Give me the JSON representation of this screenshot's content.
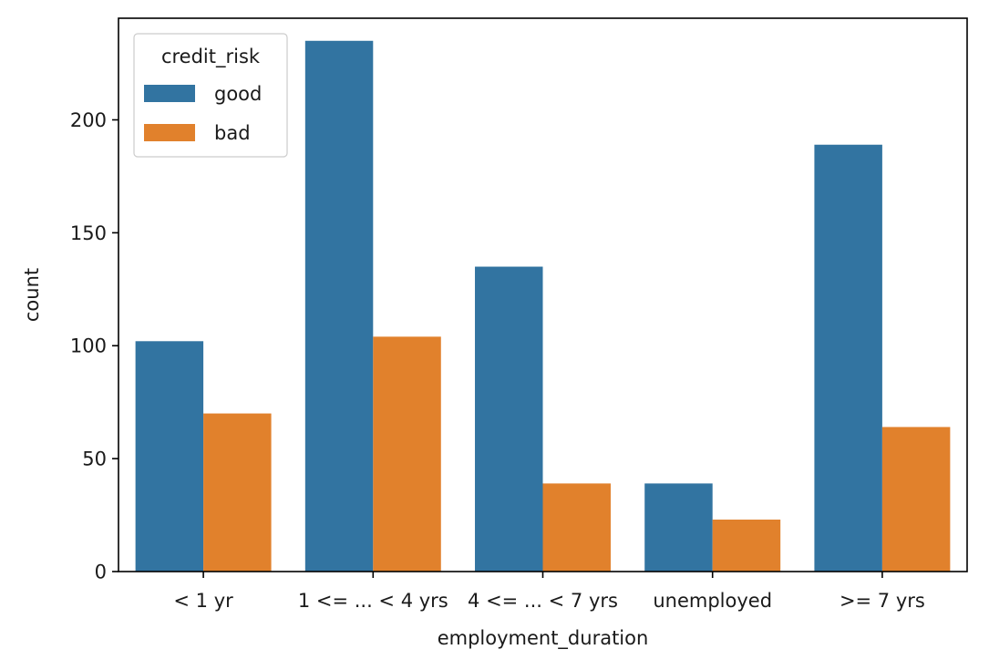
{
  "chart_data": {
    "type": "bar",
    "xlabel": "employment_duration",
    "ylabel": "count",
    "categories": [
      "< 1 yr",
      "1 <= ... < 4 yrs",
      "4 <= ... < 7 yrs",
      "unemployed",
      ">= 7 yrs"
    ],
    "series": [
      {
        "name": "good",
        "color": "#3274a1",
        "values": [
          102,
          235,
          135,
          39,
          189
        ]
      },
      {
        "name": "bad",
        "color": "#e1812c",
        "values": [
          70,
          104,
          39,
          23,
          64
        ]
      }
    ],
    "ylim": [
      0,
      245
    ],
    "yticks": [
      0,
      50,
      100,
      150,
      200
    ],
    "grid": false,
    "legend": {
      "title": "credit_risk",
      "placement": "top-left"
    }
  }
}
